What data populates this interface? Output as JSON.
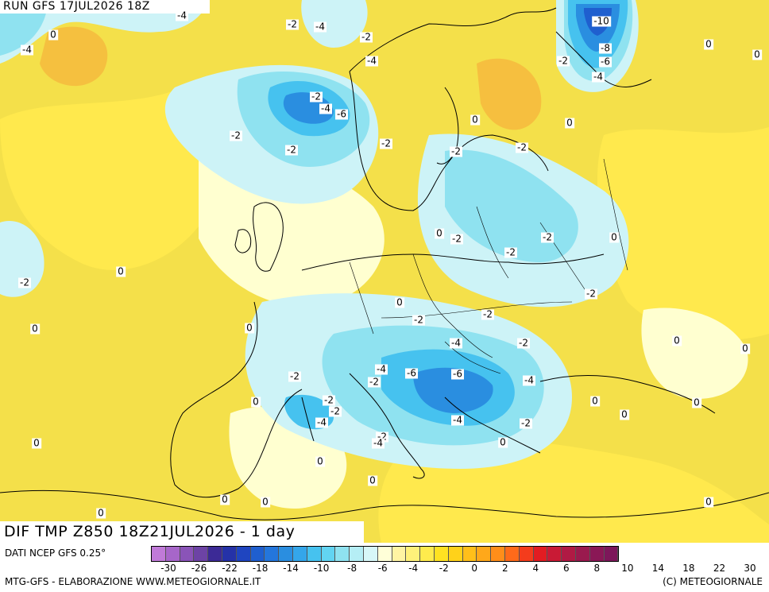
{
  "run_title": "RUN GFS 17JUL2026 18Z",
  "map_title": "DIF TMP Z850 18Z21JUL2026 - 1 day",
  "source_line": "DATI NCEP GFS 0.25°",
  "credit_left": "MTG-GFS - ELABORAZIONE WWW.METEOGIORNALE.IT",
  "credit_right": "(C) METEOGIORNALE",
  "palette": {
    "background_warm": "#f4e04a",
    "warm_yellow": "#ffe94d",
    "warm_orange": "#f6b63c",
    "neutral": "#ffffd0",
    "cool_light": "#cdf3f7",
    "cool_mid": "#8fe2f0",
    "cool_blue": "#46c2ef",
    "cool_deep": "#2a8ee0",
    "cool_dark": "#1f5fcf",
    "land_line": "#000000"
  },
  "legend": {
    "colors": [
      "#c07ad8",
      "#a766c9",
      "#8a54b8",
      "#6d43a5",
      "#3c2a96",
      "#2532a8",
      "#1f45c0",
      "#1f5fcf",
      "#2476dc",
      "#2a8ee0",
      "#34a6ea",
      "#46c2ef",
      "#62d4f2",
      "#8fe2f0",
      "#b5eef5",
      "#d7f7f8",
      "#ffffd8",
      "#fff4a3",
      "#fff17a",
      "#ffeb4d",
      "#ffe222",
      "#ffd21a",
      "#ffbf1a",
      "#ffa81a",
      "#ff8e1a",
      "#ff6a1a",
      "#f43c1c",
      "#e21c22",
      "#c91a35",
      "#b01a44",
      "#9a1a4e",
      "#8a1856",
      "#7d175a"
    ],
    "ticks": [
      "-30",
      "-26",
      "-22",
      "-18",
      "-14",
      "-10",
      "-8",
      "-6",
      "-4",
      "-2",
      "0",
      "2",
      "4",
      "6",
      "8",
      "10",
      "14",
      "18",
      "22",
      "30"
    ]
  },
  "contour_labels": [
    {
      "text": "-4"
    },
    {
      "text": "0"
    },
    {
      "text": "-4"
    },
    {
      "text": "-2"
    },
    {
      "text": "-4"
    },
    {
      "text": "-2"
    },
    {
      "text": "-4"
    },
    {
      "text": "-10"
    },
    {
      "text": "-8"
    },
    {
      "text": "-6"
    },
    {
      "text": "-4"
    },
    {
      "text": "-2"
    },
    {
      "text": "0"
    },
    {
      "text": "0"
    },
    {
      "text": "-2"
    },
    {
      "text": "-4"
    },
    {
      "text": "-6"
    },
    {
      "text": "-2"
    },
    {
      "text": "-2"
    },
    {
      "text": "-2"
    },
    {
      "text": "0"
    },
    {
      "text": "0"
    },
    {
      "text": "-2"
    },
    {
      "text": "-2"
    },
    {
      "text": "0"
    },
    {
      "text": "-2"
    },
    {
      "text": "-2"
    },
    {
      "text": "0"
    },
    {
      "text": "-2"
    },
    {
      "text": "-2"
    },
    {
      "text": "0"
    },
    {
      "text": "0"
    },
    {
      "text": "-2"
    },
    {
      "text": "0"
    },
    {
      "text": "0"
    },
    {
      "text": "-2"
    },
    {
      "text": "-2"
    },
    {
      "text": "-4"
    },
    {
      "text": "-2"
    },
    {
      "text": "0"
    },
    {
      "text": "0"
    },
    {
      "text": "-4"
    },
    {
      "text": "-2"
    },
    {
      "text": "-6"
    },
    {
      "text": "-6"
    },
    {
      "text": "-4"
    },
    {
      "text": "-2"
    },
    {
      "text": "-2"
    },
    {
      "text": "-2"
    },
    {
      "text": "-4"
    },
    {
      "text": "-4"
    },
    {
      "text": "0"
    },
    {
      "text": "0"
    },
    {
      "text": "-2"
    },
    {
      "text": "-2"
    },
    {
      "text": "-4"
    },
    {
      "text": "0"
    },
    {
      "text": "0"
    },
    {
      "text": "0"
    },
    {
      "text": "0"
    },
    {
      "text": "0"
    },
    {
      "text": "0"
    },
    {
      "text": "0"
    },
    {
      "text": "0"
    },
    {
      "text": "0"
    },
    {
      "text": "0"
    }
  ]
}
